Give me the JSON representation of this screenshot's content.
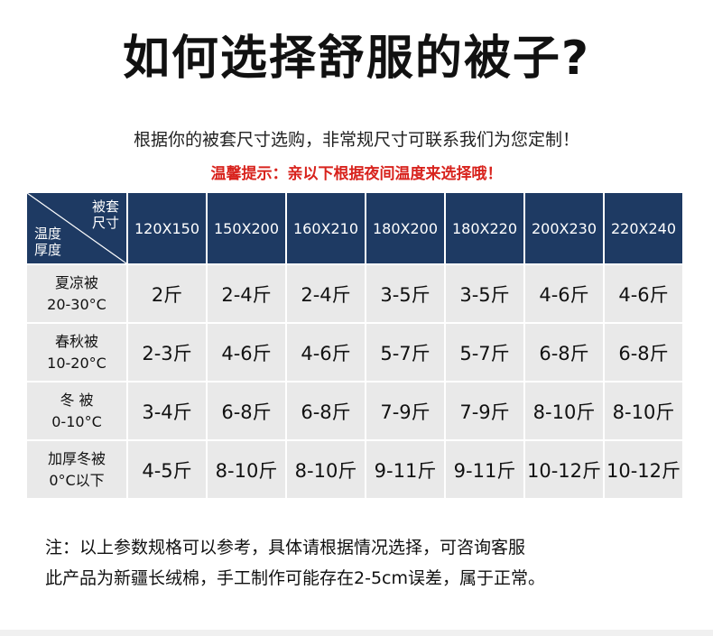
{
  "title": "如何选择舒服的被子?",
  "subtitle": "根据你的被套尺寸选购，非常规尺寸可联系我们为您定制！",
  "tip": "温馨提示：亲以下根据夜间温度来选择哦！",
  "table": {
    "corner_top_line1": "被套",
    "corner_top_line2": "尺寸",
    "corner_bottom_line1": "温度",
    "corner_bottom_line2": "厚度",
    "columns": [
      "120X150",
      "150X200",
      "160X210",
      "180X200",
      "180X220",
      "200X230",
      "220X240"
    ],
    "rows": [
      {
        "name": "夏凉被",
        "temp": "20-30°C",
        "values": [
          "2斤",
          "2-4斤",
          "2-4斤",
          "3-5斤",
          "3-5斤",
          "4-6斤",
          "4-6斤"
        ]
      },
      {
        "name": "春秋被",
        "temp": "10-20°C",
        "values": [
          "2-3斤",
          "4-6斤",
          "4-6斤",
          "5-7斤",
          "5-7斤",
          "6-8斤",
          "6-8斤"
        ]
      },
      {
        "name": "冬 被",
        "temp": "0-10°C",
        "values": [
          "3-4斤",
          "6-8斤",
          "6-8斤",
          "7-9斤",
          "7-9斤",
          "8-10斤",
          "8-10斤"
        ]
      },
      {
        "name": "加厚冬被",
        "temp": "0°C以下",
        "values": [
          "4-5斤",
          "8-10斤",
          "8-10斤",
          "9-11斤",
          "9-11斤",
          "10-12斤",
          "10-12斤"
        ]
      }
    ]
  },
  "note_line1": "注：以上参数规格可以参考，具体请根据情况选择，可咨询客服",
  "note_line2": "此产品为新疆长绒棉，手工制作可能存在2-5cm误差，属于正常。",
  "colors": {
    "header_bg": "#1e3a63",
    "cell_bg": "#e9e9e9",
    "tip_text": "#d8231d"
  }
}
